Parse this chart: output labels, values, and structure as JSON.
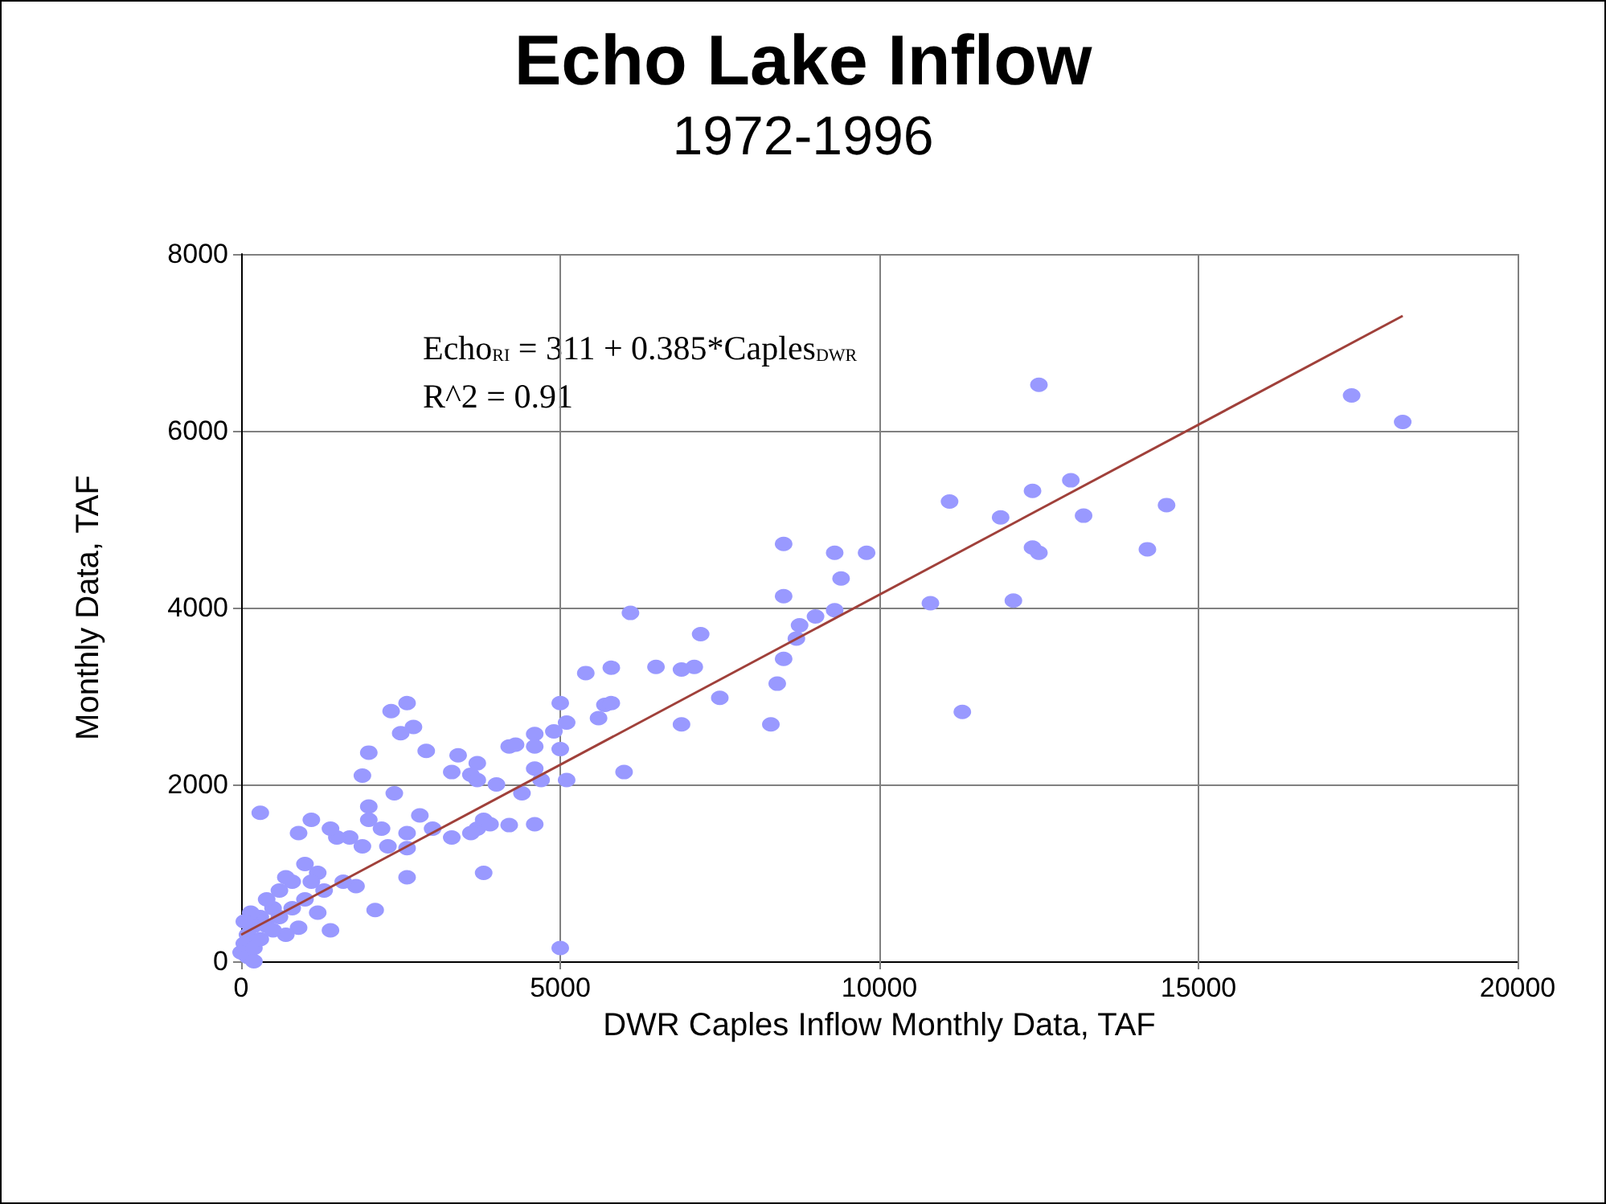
{
  "chart_data": {
    "type": "scatter",
    "title": "Echo Lake Inflow",
    "subtitle": "1972-1996",
    "xlabel": "DWR Caples Inflow Monthly Data, TAF",
    "ylabel": "Monthly Data, TAF",
    "annotations": [
      "Echo$_{RI}$ = 311 + 0.385*Caples$_{DWR}$",
      "R^2 = 0.91"
    ],
    "xlim": [
      0,
      20000
    ],
    "xticks": [
      0,
      5000,
      10000,
      15000,
      20000
    ],
    "ylim": [
      0,
      8000
    ],
    "yticks": [
      0,
      2000,
      4000,
      6000,
      8000
    ],
    "grid": true,
    "marker": "circle",
    "series": [
      {
        "color": "#9999ff",
        "x": [
          12500,
          17400,
          18200,
          11100,
          13000,
          12400,
          11900,
          13200,
          14500,
          12400,
          12500,
          14200,
          8500,
          9300,
          9800,
          9400,
          8500,
          10800,
          12100,
          11300,
          6100,
          8750,
          8700,
          9000,
          9300,
          7200,
          7100,
          6900,
          6500,
          5800,
          5400,
          5700,
          5800,
          7500,
          8400,
          8300,
          6900,
          8500,
          5600,
          6000,
          5000,
          5100,
          4900,
          4600,
          4600,
          4200,
          4300,
          4600,
          4700,
          4400,
          4200,
          4600,
          5000,
          5100,
          4000,
          3700,
          3600,
          3700,
          3400,
          3300,
          2900,
          2700,
          2600,
          2500,
          2350,
          2000,
          1900,
          3000,
          3300,
          3700,
          3800,
          3900,
          3800,
          3600,
          5000,
          2800,
          2600,
          2600,
          2400,
          2200,
          2000,
          2000,
          1900,
          1700,
          1500,
          1400,
          1100,
          900,
          300,
          2100,
          1800,
          1600,
          1400,
          1200,
          1000,
          800,
          700,
          600,
          500,
          400,
          300,
          200,
          100,
          50,
          0,
          100,
          200,
          300,
          150,
          400,
          600,
          800,
          1000,
          1200,
          900,
          700,
          500,
          1300,
          2600,
          2300,
          1100,
          50,
          200
        ],
        "values": [
          6520,
          6400,
          6100,
          5200,
          5440,
          5320,
          5020,
          5040,
          5160,
          4680,
          4620,
          4660,
          4720,
          4620,
          4620,
          4330,
          4130,
          4050,
          4080,
          2820,
          3940,
          3800,
          3650,
          3900,
          3970,
          3700,
          3330,
          3300,
          3330,
          3320,
          3260,
          2900,
          2920,
          2980,
          3140,
          2680,
          2680,
          3420,
          2750,
          2140,
          2920,
          2700,
          2600,
          2570,
          2430,
          2430,
          2450,
          2180,
          2050,
          1900,
          1540,
          1550,
          2400,
          2050,
          2000,
          2240,
          2110,
          2050,
          2330,
          2140,
          2380,
          2650,
          2920,
          2580,
          2830,
          2360,
          2100,
          1500,
          1400,
          1500,
          1600,
          1550,
          1000,
          1450,
          150,
          1650,
          1280,
          950,
          1900,
          1500,
          1750,
          1600,
          1300,
          1400,
          1400,
          1500,
          1600,
          1450,
          1680,
          580,
          850,
          900,
          350,
          1000,
          1100,
          900,
          950,
          800,
          600,
          700,
          500,
          400,
          300,
          200,
          100,
          50,
          150,
          250,
          550,
          400,
          500,
          600,
          700,
          550,
          380,
          300,
          350,
          800,
          1450,
          1300,
          900,
          450,
          0
        ]
      },
      {
        "type": "line",
        "color": "#a0403a",
        "marker": "none",
        "x": [
          0,
          18200
        ],
        "values": [
          300,
          7300
        ]
      }
    ]
  }
}
